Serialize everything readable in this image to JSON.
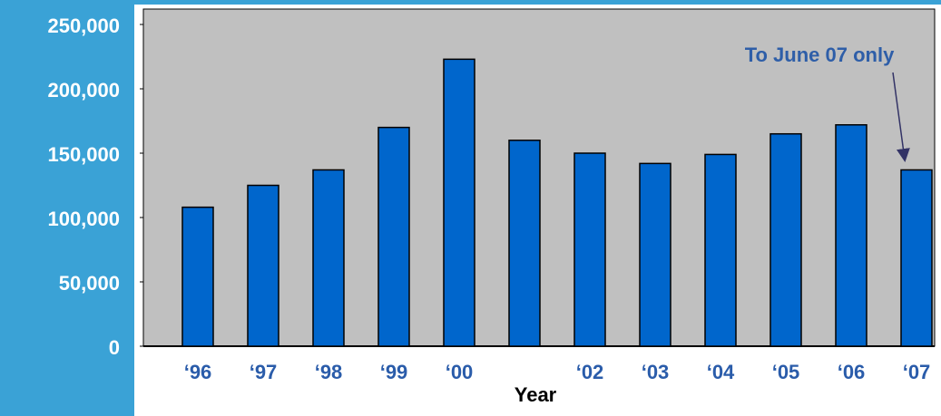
{
  "chart_data": {
    "type": "bar",
    "x_label": "Year",
    "annotation": "To June 07 only",
    "categories": [
      "‘96",
      "‘97",
      "‘98",
      "‘99",
      "‘00",
      null,
      "‘02",
      "‘03",
      "‘04",
      "‘05",
      "‘06",
      "‘07"
    ],
    "values": [
      108000,
      125000,
      137000,
      170000,
      223000,
      160000,
      150000,
      142000,
      149000,
      165000,
      172000,
      137000
    ],
    "color": "#0066cc",
    "ylim": [
      0,
      250000
    ],
    "yticks": [
      {
        "value": 0,
        "label": "0"
      },
      {
        "value": 50000,
        "label": "50,000"
      },
      {
        "value": 100000,
        "label": "100,000"
      },
      {
        "value": 150000,
        "label": "150,000"
      },
      {
        "value": 200000,
        "label": "200,000"
      },
      {
        "value": 250000,
        "label": "250,000"
      }
    ]
  }
}
